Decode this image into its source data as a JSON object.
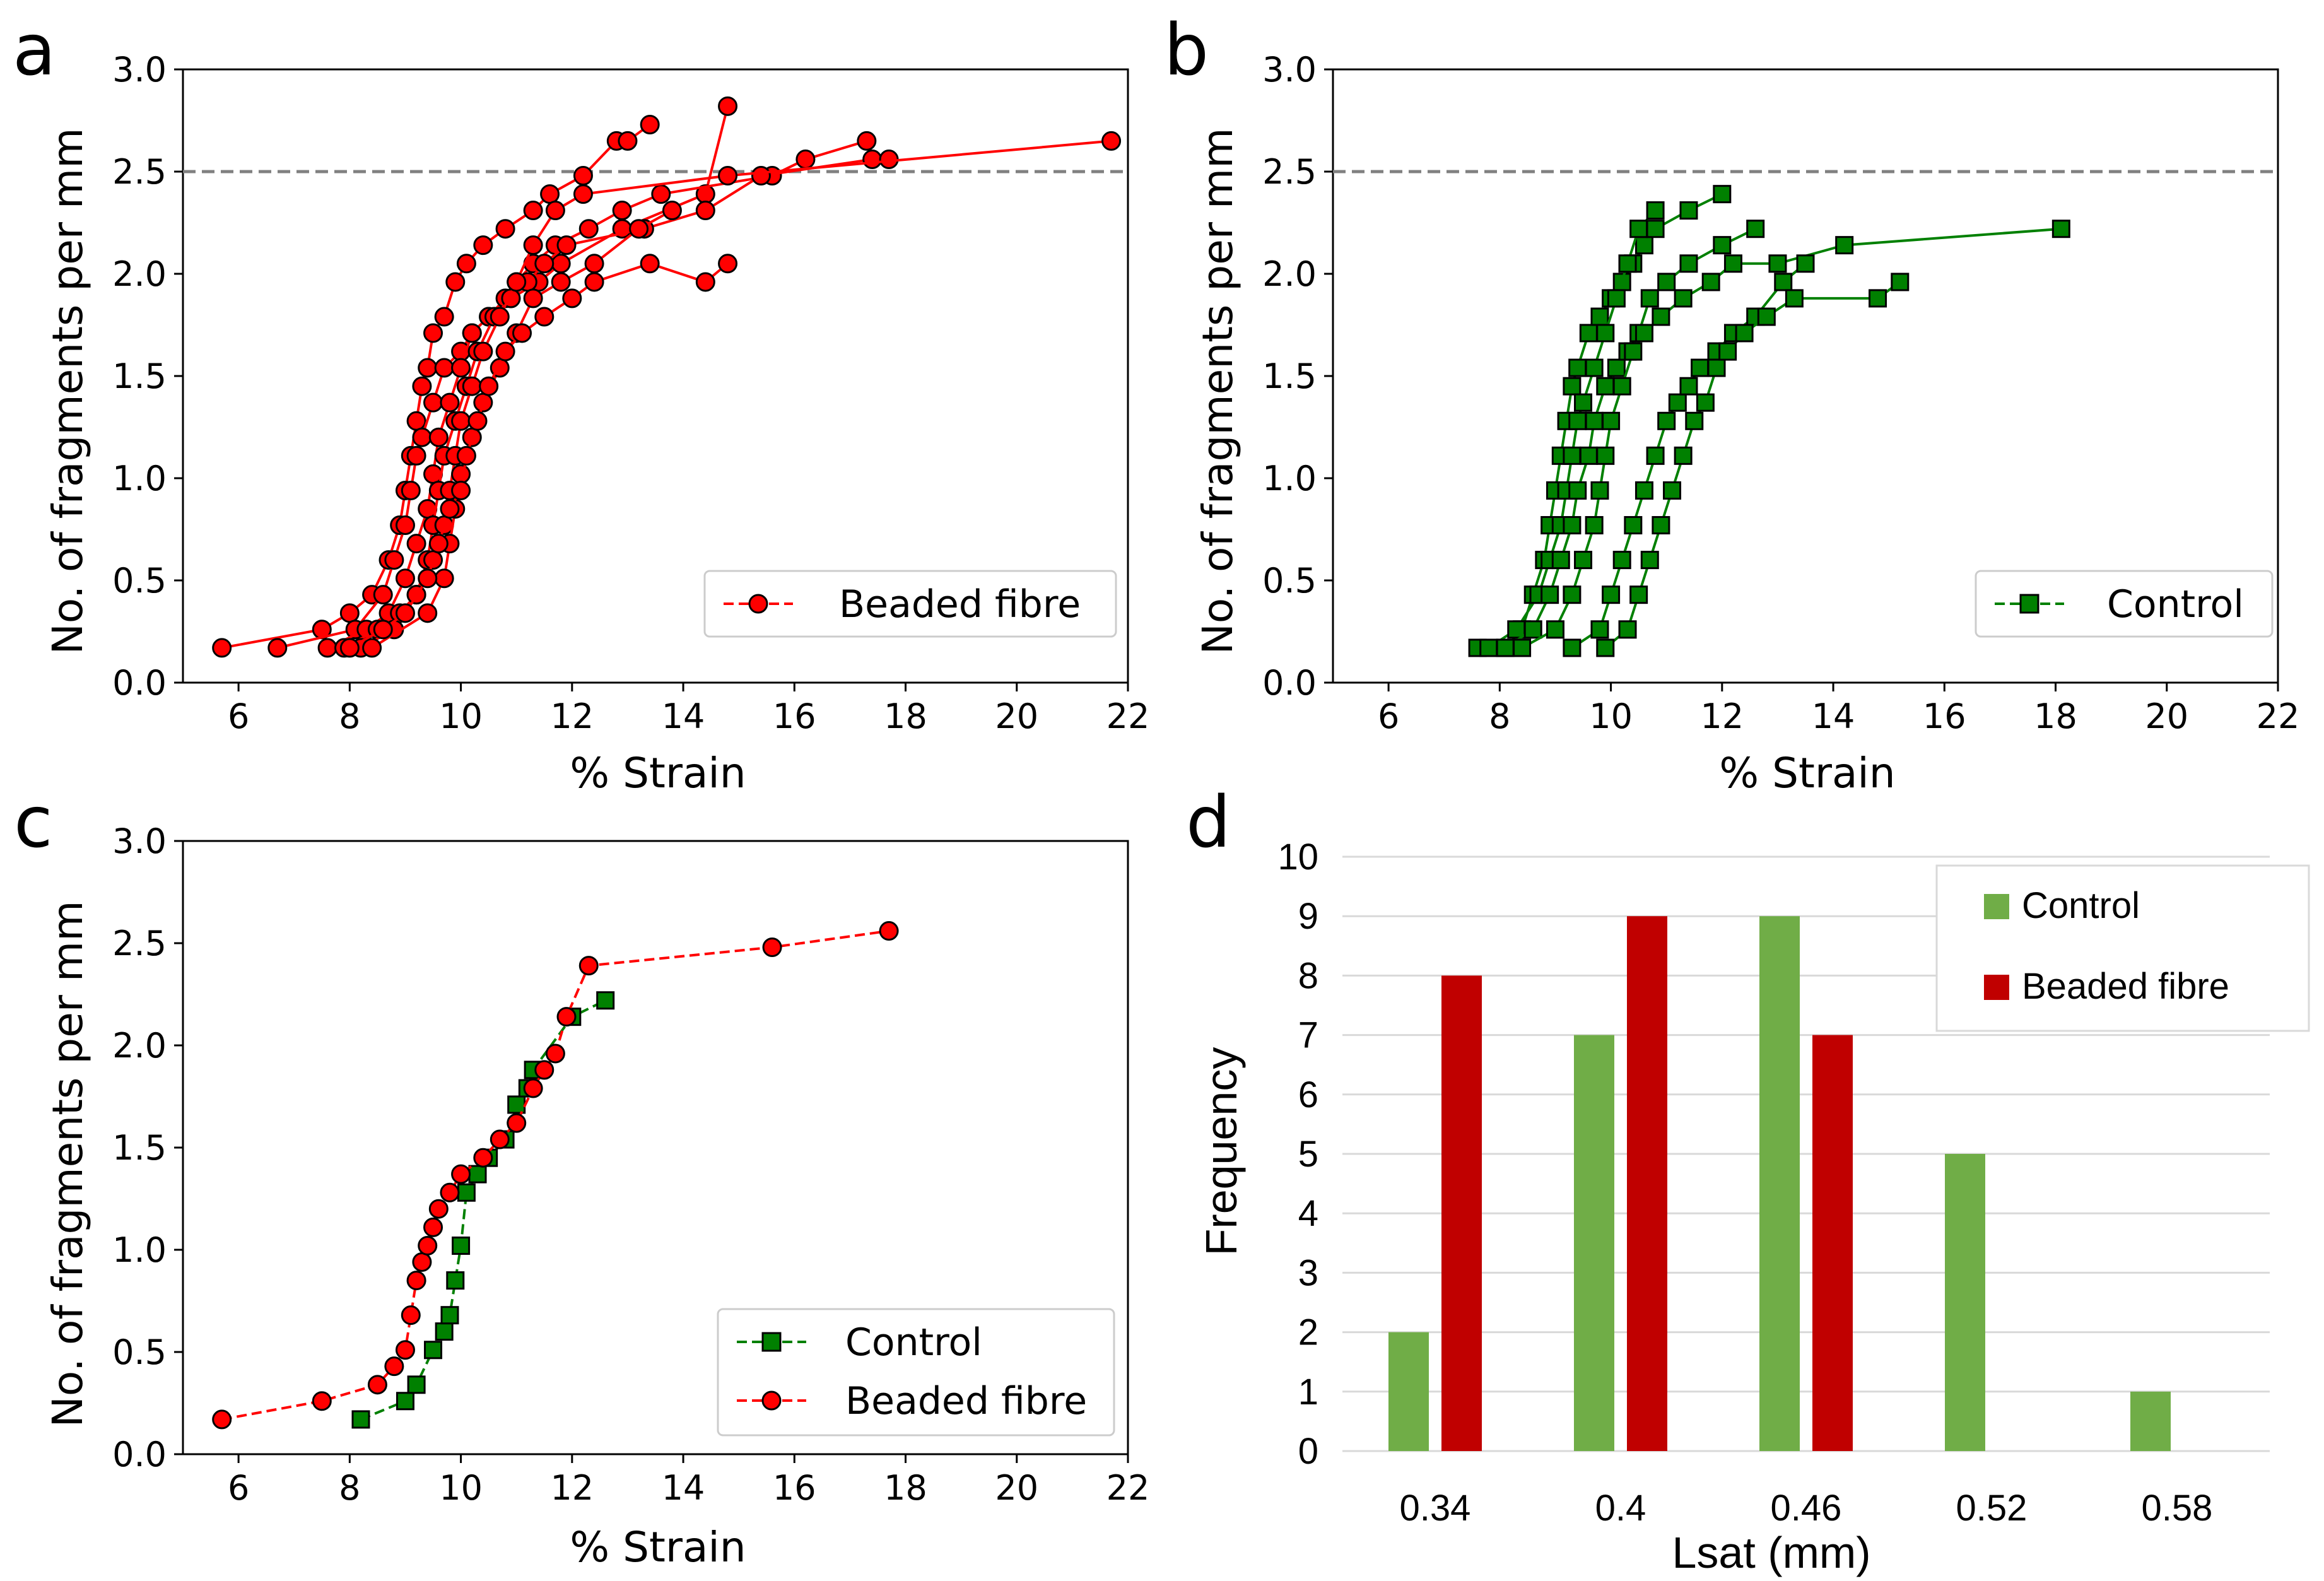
{
  "panels": [
    {
      "letter": "a"
    },
    {
      "letter": "b"
    },
    {
      "letter": "c"
    },
    {
      "letter": "d"
    }
  ],
  "colors": {
    "red": "#ff0000",
    "darkgreen": "#008000",
    "bar_green": "#70ad47",
    "bar_red": "#c00000",
    "threshold": "#808080"
  },
  "chart_data": [
    {
      "panel": "a",
      "type": "line",
      "xlabel": "% Strain",
      "ylabel": "No. of fragments per mm",
      "xlim": [
        5,
        22
      ],
      "ylim": [
        0,
        3
      ],
      "xticks": [
        6,
        8,
        10,
        12,
        14,
        16,
        18,
        20,
        22
      ],
      "yticks": [
        0.0,
        0.5,
        1.0,
        1.5,
        2.0,
        2.5,
        3.0
      ],
      "xtick_labels": [
        "6",
        "8",
        "10",
        "12",
        "14",
        "16",
        "18",
        "20",
        "22"
      ],
      "ytick_labels": [
        "0.0",
        "0.5",
        "1.0",
        "1.5",
        "2.0",
        "2.5",
        "3.0"
      ],
      "threshold": 2.5,
      "legend": {
        "label": "Beaded fibre",
        "marker": "circle",
        "line": "dashed",
        "position": "lower-right"
      },
      "series": [
        {
          "name": "Beaded fibre",
          "x": [
            5.7,
            7.5,
            8.0,
            8.4,
            8.7,
            8.9,
            9.0,
            9.1,
            9.2,
            9.3,
            9.4,
            9.5,
            9.7,
            9.9,
            10.1,
            10.4,
            10.8,
            11.3,
            11.6,
            12.2,
            12.8,
            13.0,
            13.4
          ],
          "y": [
            0.17,
            0.26,
            0.34,
            0.43,
            0.6,
            0.77,
            0.94,
            1.11,
            1.28,
            1.45,
            1.54,
            1.71,
            1.79,
            1.96,
            2.05,
            2.14,
            2.22,
            2.31,
            2.39,
            2.48,
            2.65,
            2.65,
            2.73
          ]
        },
        {
          "name": "Beaded fibre",
          "x": [
            6.7,
            8.1,
            8.6,
            8.8,
            9.0,
            9.1,
            9.2,
            9.3,
            9.5,
            9.7,
            10.0,
            10.2,
            10.5,
            10.9,
            11.4,
            11.8,
            12.9,
            14.4,
            14.8
          ],
          "y": [
            0.17,
            0.26,
            0.43,
            0.6,
            0.77,
            0.94,
            1.11,
            1.2,
            1.37,
            1.54,
            1.62,
            1.71,
            1.79,
            1.88,
            1.96,
            2.05,
            2.22,
            2.39,
            2.82
          ]
        },
        {
          "name": "Beaded fibre",
          "x": [
            7.6,
            8.3,
            8.7,
            9.0,
            9.2,
            9.4,
            9.5,
            9.6,
            9.8,
            10.0,
            10.2,
            10.5,
            10.8,
            11.0,
            11.3,
            11.7,
            12.3,
            12.9,
            13.6,
            15.6,
            16.2,
            17.3
          ],
          "y": [
            0.17,
            0.26,
            0.34,
            0.51,
            0.68,
            0.85,
            1.02,
            1.2,
            1.37,
            1.54,
            1.71,
            1.79,
            1.88,
            1.96,
            2.05,
            2.14,
            2.22,
            2.31,
            2.39,
            2.48,
            2.56,
            2.65
          ]
        },
        {
          "name": "Beaded fibre",
          "x": [
            7.9,
            8.5,
            8.9,
            9.2,
            9.4,
            9.5,
            9.6,
            9.7,
            9.9,
            10.1,
            10.3,
            10.6,
            10.9,
            11.2,
            11.5,
            11.9,
            13.3,
            14.4,
            15.4,
            17.4,
            17.7
          ],
          "y": [
            0.17,
            0.26,
            0.34,
            0.43,
            0.6,
            0.77,
            0.94,
            1.11,
            1.28,
            1.45,
            1.62,
            1.79,
            1.88,
            1.96,
            2.05,
            2.14,
            2.22,
            2.31,
            2.48,
            2.56,
            2.56
          ]
        },
        {
          "name": "Beaded fibre",
          "x": [
            8.2,
            8.8,
            9.2,
            9.5,
            9.7,
            9.8,
            9.9,
            10.0,
            10.2,
            10.4,
            10.7,
            11.0,
            11.3,
            11.7,
            12.2,
            14.8,
            21.7
          ],
          "y": [
            0.17,
            0.26,
            0.43,
            0.6,
            0.77,
            0.94,
            1.11,
            1.28,
            1.45,
            1.62,
            1.79,
            1.96,
            2.14,
            2.31,
            2.39,
            2.48,
            2.65
          ]
        },
        {
          "name": "Beaded fibre",
          "x": [
            8.4,
            9.4,
            9.7,
            9.8,
            9.9,
            10.0,
            10.2,
            10.4,
            10.7,
            11.0,
            11.3,
            11.8,
            12.4,
            13.2,
            13.8
          ],
          "y": [
            0.17,
            0.34,
            0.51,
            0.68,
            0.85,
            1.02,
            1.2,
            1.37,
            1.54,
            1.71,
            1.88,
            1.96,
            2.05,
            2.22,
            2.31
          ]
        },
        {
          "name": "Beaded fibre",
          "x": [
            8.0,
            8.6,
            9.0,
            9.4,
            9.6,
            9.8,
            10.0,
            10.1,
            10.3,
            10.5,
            10.8,
            11.1,
            11.5,
            12.0,
            12.4,
            13.4,
            14.4,
            14.8
          ],
          "y": [
            0.17,
            0.26,
            0.34,
            0.51,
            0.68,
            0.85,
            0.94,
            1.11,
            1.28,
            1.45,
            1.62,
            1.71,
            1.79,
            1.88,
            1.96,
            2.05,
            1.96,
            2.05
          ]
        }
      ]
    },
    {
      "panel": "b",
      "type": "line",
      "xlabel": "% Strain",
      "ylabel": "No. of fragments per mm",
      "xlim": [
        5,
        22
      ],
      "ylim": [
        0,
        3
      ],
      "xticks": [
        6,
        8,
        10,
        12,
        14,
        16,
        18,
        20,
        22
      ],
      "yticks": [
        0.0,
        0.5,
        1.0,
        1.5,
        2.0,
        2.5,
        3.0
      ],
      "xtick_labels": [
        "6",
        "8",
        "10",
        "12",
        "14",
        "16",
        "18",
        "20",
        "22"
      ],
      "ytick_labels": [
        "0.0",
        "0.5",
        "1.0",
        "1.5",
        "2.0",
        "2.5",
        "3.0"
      ],
      "threshold": 2.5,
      "legend": {
        "label": "Control",
        "marker": "square",
        "line": "dashed",
        "position": "lower-right"
      },
      "series": [
        {
          "name": "Control",
          "x": [
            7.6,
            8.1,
            8.4,
            8.6,
            8.8,
            8.9,
            9.0,
            9.1,
            9.2,
            9.3,
            9.4,
            9.6,
            9.8,
            10.0,
            10.2,
            10.4,
            10.6,
            10.8,
            11.4,
            12.0
          ],
          "y": [
            0.17,
            0.17,
            0.26,
            0.43,
            0.6,
            0.77,
            0.94,
            1.11,
            1.28,
            1.45,
            1.54,
            1.71,
            1.79,
            1.88,
            1.96,
            2.05,
            2.14,
            2.22,
            2.31,
            2.39
          ]
        },
        {
          "name": "Control",
          "x": [
            7.8,
            8.3,
            8.7,
            8.9,
            9.1,
            9.2,
            9.3,
            9.4,
            9.5,
            9.7,
            9.9,
            10.1,
            10.3,
            10.5,
            10.8
          ],
          "y": [
            0.17,
            0.26,
            0.43,
            0.6,
            0.77,
            0.94,
            1.11,
            1.28,
            1.37,
            1.54,
            1.71,
            1.88,
            2.05,
            2.22,
            2.31
          ]
        },
        {
          "name": "Control",
          "x": [
            8.1,
            8.6,
            8.9,
            9.1,
            9.3,
            9.4,
            9.6,
            9.7,
            9.9,
            10.1,
            10.3,
            10.5,
            10.7,
            11.0,
            11.4,
            12.0,
            12.6
          ],
          "y": [
            0.17,
            0.26,
            0.43,
            0.6,
            0.77,
            0.94,
            1.11,
            1.28,
            1.45,
            1.54,
            1.62,
            1.71,
            1.88,
            1.96,
            2.05,
            2.14,
            2.22
          ]
        },
        {
          "name": "Control",
          "x": [
            8.4,
            9.0,
            9.3,
            9.5,
            9.7,
            9.8,
            9.9,
            10.0,
            10.2,
            10.4,
            10.6,
            10.9,
            11.3,
            11.8,
            12.2,
            13.0,
            14.2,
            18.1
          ],
          "y": [
            0.17,
            0.26,
            0.43,
            0.6,
            0.77,
            0.94,
            1.11,
            1.28,
            1.45,
            1.62,
            1.71,
            1.79,
            1.88,
            1.96,
            2.05,
            2.05,
            2.14,
            2.22
          ]
        },
        {
          "name": "Control",
          "x": [
            9.3,
            9.8,
            10.0,
            10.2,
            10.4,
            10.6,
            10.8,
            11.0,
            11.2,
            11.4,
            11.6,
            11.9,
            12.2,
            12.6,
            13.1,
            13.5
          ],
          "y": [
            0.17,
            0.26,
            0.43,
            0.6,
            0.77,
            0.94,
            1.11,
            1.28,
            1.37,
            1.45,
            1.54,
            1.62,
            1.71,
            1.79,
            1.96,
            2.05
          ]
        },
        {
          "name": "Control",
          "x": [
            9.9,
            10.3,
            10.5,
            10.7,
            10.9,
            11.1,
            11.3,
            11.5,
            11.7,
            11.9,
            12.1,
            12.4,
            12.8,
            13.3,
            14.8,
            15.2
          ],
          "y": [
            0.17,
            0.26,
            0.43,
            0.6,
            0.77,
            0.94,
            1.11,
            1.28,
            1.37,
            1.54,
            1.62,
            1.71,
            1.79,
            1.88,
            1.88,
            1.96
          ]
        }
      ]
    },
    {
      "panel": "c",
      "type": "line",
      "xlabel": "% Strain",
      "ylabel": "No. of fragments per mm",
      "xlim": [
        5,
        22
      ],
      "ylim": [
        0,
        3
      ],
      "xticks": [
        6,
        8,
        10,
        12,
        14,
        16,
        18,
        20,
        22
      ],
      "yticks": [
        0.0,
        0.5,
        1.0,
        1.5,
        2.0,
        2.5,
        3.0
      ],
      "xtick_labels": [
        "6",
        "8",
        "10",
        "12",
        "14",
        "16",
        "18",
        "20",
        "22"
      ],
      "ytick_labels": [
        "0.0",
        "0.5",
        "1.0",
        "1.5",
        "2.0",
        "2.5",
        "3.0"
      ],
      "legend": {
        "position": "lower-right"
      },
      "series": [
        {
          "name": "Control",
          "marker": "square",
          "x": [
            8.2,
            9.0,
            9.2,
            9.5,
            9.7,
            9.8,
            9.9,
            10.0,
            10.1,
            10.3,
            10.5,
            10.8,
            11.0,
            11.2,
            11.3,
            12.0,
            12.6
          ],
          "y": [
            0.17,
            0.26,
            0.34,
            0.51,
            0.6,
            0.68,
            0.85,
            1.02,
            1.28,
            1.37,
            1.45,
            1.54,
            1.71,
            1.79,
            1.88,
            2.14,
            2.22
          ]
        },
        {
          "name": "Beaded fibre",
          "marker": "circle",
          "x": [
            5.7,
            7.5,
            8.5,
            8.8,
            9.0,
            9.1,
            9.2,
            9.3,
            9.4,
            9.5,
            9.6,
            9.8,
            10.0,
            10.4,
            10.7,
            11.0,
            11.3,
            11.5,
            11.7,
            11.9,
            12.3,
            15.6,
            17.7
          ],
          "y": [
            0.17,
            0.26,
            0.34,
            0.43,
            0.51,
            0.68,
            0.85,
            0.94,
            1.02,
            1.11,
            1.2,
            1.28,
            1.37,
            1.45,
            1.54,
            1.62,
            1.79,
            1.88,
            1.96,
            2.14,
            2.39,
            2.48,
            2.56
          ]
        }
      ]
    },
    {
      "panel": "d",
      "type": "bar",
      "xlabel": "Lsat (mm)",
      "ylabel": "Frequency",
      "ylim": [
        0,
        10
      ],
      "yticks": [
        0,
        1,
        2,
        3,
        4,
        5,
        6,
        7,
        8,
        9,
        10
      ],
      "ytick_labels": [
        "0",
        "1",
        "2",
        "3",
        "4",
        "5",
        "6",
        "7",
        "8",
        "9",
        "10"
      ],
      "categories": [
        "0.34",
        "0.4",
        "0.46",
        "0.52",
        "0.58"
      ],
      "legend": {
        "position": "top-right"
      },
      "series": [
        {
          "name": "Control",
          "values": [
            2,
            7,
            9,
            5,
            1
          ]
        },
        {
          "name": "Beaded fibre",
          "values": [
            8,
            9,
            7,
            0,
            0
          ]
        }
      ]
    }
  ]
}
